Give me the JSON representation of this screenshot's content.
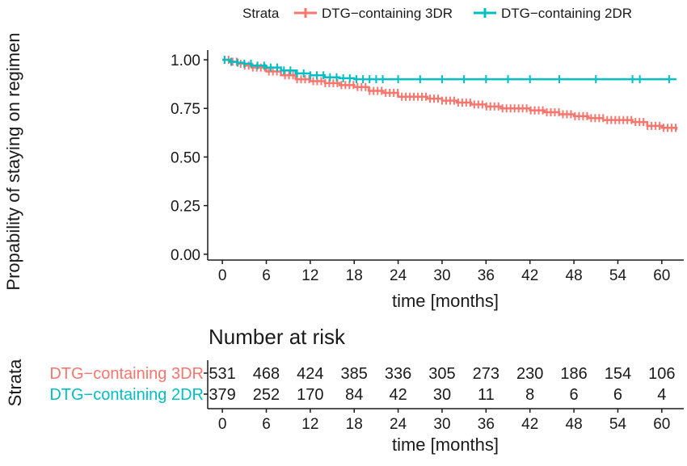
{
  "chart_data": {
    "type": "line",
    "step": true,
    "ylabel": "Propability of staying on regimen",
    "xlabel": "time [months]",
    "xlim": [
      -2,
      63
    ],
    "ylim": [
      -0.03,
      1.05
    ],
    "x_ticks": [
      "0",
      "6",
      "12",
      "18",
      "24",
      "30",
      "36",
      "42",
      "48",
      "54",
      "60"
    ],
    "x_tick_values": [
      0,
      6,
      12,
      18,
      24,
      30,
      36,
      42,
      48,
      54,
      60
    ],
    "y_ticks": [
      "0.00",
      "0.25",
      "0.50",
      "0.75",
      "1.00"
    ],
    "y_tick_values": [
      0,
      0.25,
      0.5,
      0.75,
      1.0
    ],
    "grid": false,
    "legend": {
      "title": "Strata",
      "position": "top",
      "entries": [
        "DTG−containing 3DR",
        "DTG−containing 2DR"
      ]
    },
    "series": [
      {
        "name": "DTG−containing 3DR",
        "color": "#F8766D",
        "x": [
          0,
          1,
          2,
          3,
          4,
          6,
          8,
          10,
          12,
          14,
          16,
          18,
          20,
          22,
          24,
          26,
          28,
          30,
          32,
          34,
          36,
          38,
          40,
          42,
          44,
          46,
          48,
          50,
          52,
          54,
          56,
          58,
          60,
          62
        ],
        "y": [
          1.0,
          0.99,
          0.98,
          0.97,
          0.96,
          0.94,
          0.92,
          0.9,
          0.89,
          0.88,
          0.87,
          0.86,
          0.84,
          0.83,
          0.81,
          0.81,
          0.8,
          0.79,
          0.78,
          0.77,
          0.76,
          0.75,
          0.75,
          0.74,
          0.73,
          0.72,
          0.71,
          0.7,
          0.69,
          0.69,
          0.68,
          0.66,
          0.65,
          0.64
        ]
      },
      {
        "name": "DTG−containing 2DR",
        "color": "#00BFC4",
        "x": [
          0,
          1,
          2,
          3,
          4,
          6,
          8,
          10,
          12,
          14,
          16,
          18,
          20,
          62
        ],
        "y": [
          1.0,
          0.99,
          0.985,
          0.98,
          0.97,
          0.96,
          0.945,
          0.93,
          0.92,
          0.91,
          0.905,
          0.9,
          0.9,
          0.9
        ]
      }
    ],
    "risk_table": {
      "title": "Number at risk",
      "strata_label": "Strata",
      "xlabel": "time [months]",
      "rows": [
        {
          "name": "DTG−containing 3DR",
          "color": "#F8766D",
          "values": [
            531,
            468,
            424,
            385,
            336,
            305,
            273,
            230,
            186,
            154,
            106
          ]
        },
        {
          "name": "DTG−containing 2DR",
          "color": "#00BFC4",
          "values": [
            379,
            252,
            170,
            84,
            42,
            30,
            11,
            8,
            6,
            6,
            4
          ]
        }
      ]
    }
  }
}
